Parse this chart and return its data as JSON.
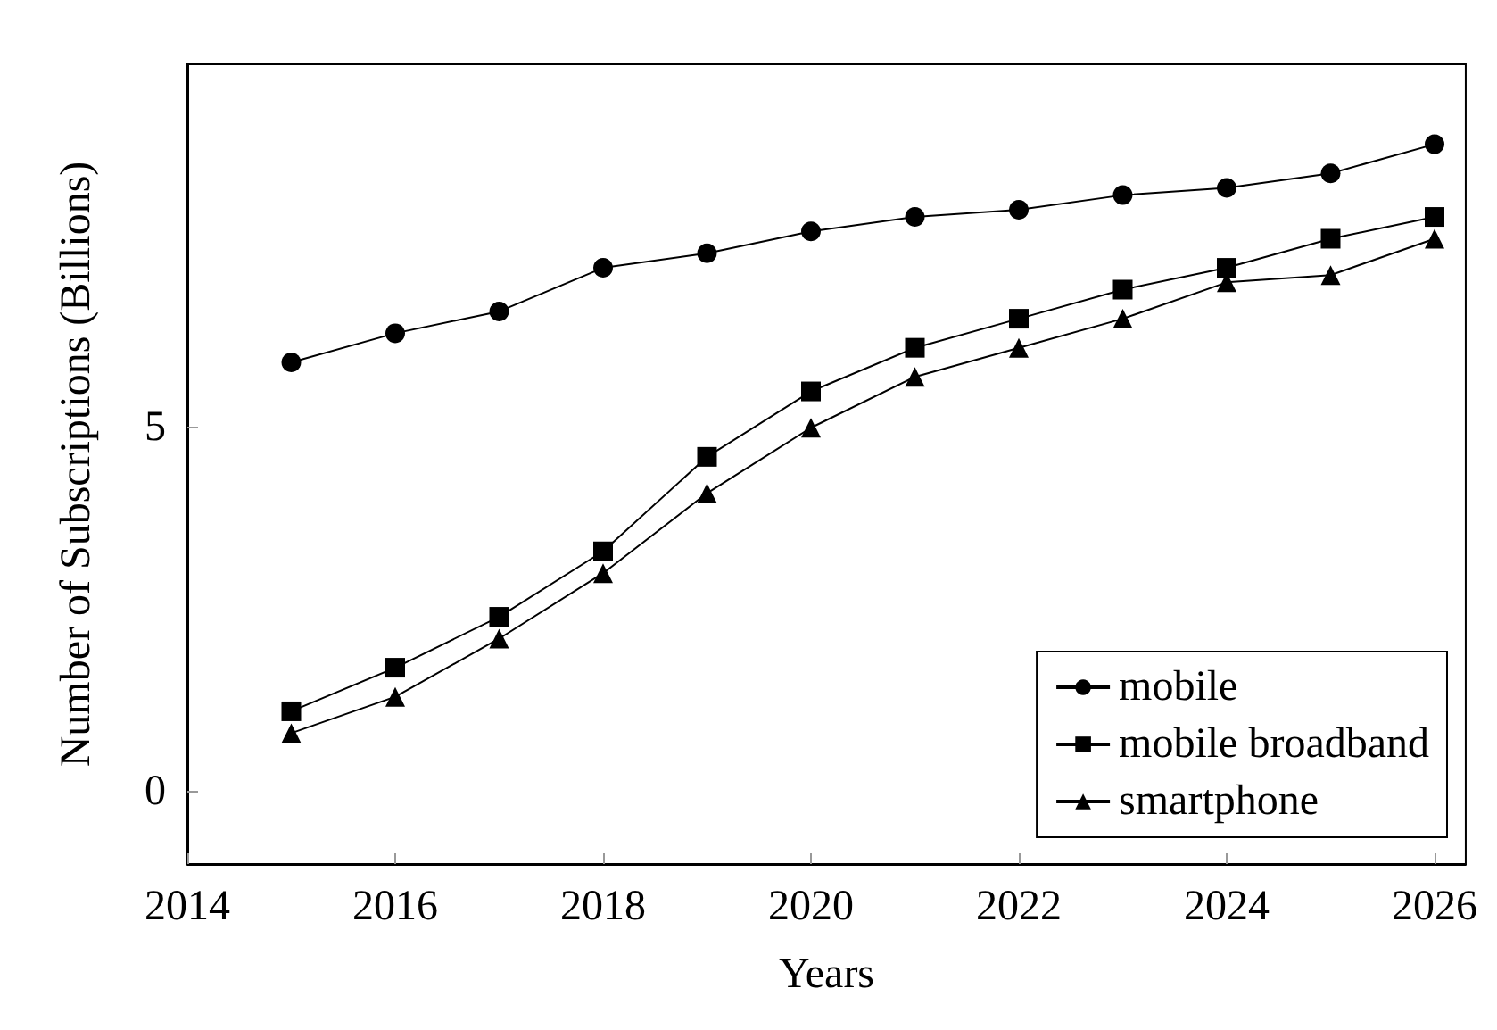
{
  "chart_data": {
    "type": "line",
    "xlabel": "Years",
    "ylabel": "Number of Subscriptions (Billions)",
    "x": [
      2015,
      2016,
      2017,
      2018,
      2019,
      2020,
      2021,
      2022,
      2023,
      2024,
      2025,
      2026
    ],
    "xlim": [
      2014,
      2026.3
    ],
    "xticks": [
      2014,
      2016,
      2018,
      2020,
      2022,
      2024,
      2026
    ],
    "ylim": [
      -1,
      10
    ],
    "yticks": [
      0,
      5
    ],
    "grid": false,
    "legend": "bottom right",
    "line_style": "solid",
    "series": [
      {
        "name": "mobile",
        "color": "#000000",
        "marker": "circle",
        "values": [
          5.9,
          6.3,
          6.6,
          7.2,
          7.4,
          7.7,
          7.9,
          8.0,
          8.2,
          8.3,
          8.5,
          8.9
        ]
      },
      {
        "name": "mobile broadband",
        "color": "#000000",
        "marker": "square",
        "values": [
          1.1,
          1.7,
          2.4,
          3.3,
          4.6,
          5.5,
          6.1,
          6.5,
          6.9,
          7.2,
          7.6,
          7.9
        ]
      },
      {
        "name": "smartphone",
        "color": "#000000",
        "marker": "triangle",
        "values": [
          0.8,
          1.3,
          2.1,
          3.0,
          4.1,
          5.0,
          5.7,
          6.1,
          6.5,
          7.0,
          7.1,
          7.6
        ]
      }
    ]
  }
}
